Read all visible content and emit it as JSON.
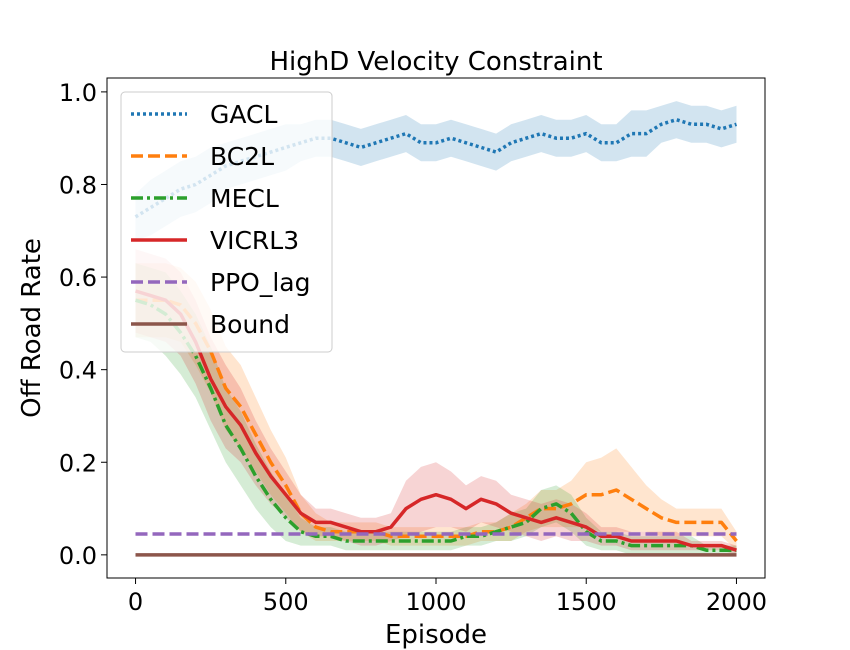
{
  "chart_data": {
    "type": "line",
    "title": "HighD Velocity Constraint",
    "xlabel": "Episode",
    "ylabel": "Off Road Rate",
    "xlim": [
      -95,
      2095
    ],
    "ylim": [
      -0.05,
      1.03
    ],
    "xticks": [
      0,
      500,
      1000,
      1500,
      2000
    ],
    "xtick_labels": [
      "0",
      "500",
      "1000",
      "1500",
      "2000"
    ],
    "yticks": [
      0.0,
      0.2,
      0.4,
      0.6,
      0.8,
      1.0
    ],
    "ytick_labels": [
      "0.0",
      "0.2",
      "0.4",
      "0.6",
      "0.8",
      "1.0"
    ],
    "grid": false,
    "legend_position": "top-left",
    "series": [
      {
        "name": "GACL",
        "color": "#1f77b4",
        "style": "dotted",
        "x": [
          0,
          50,
          100,
          150,
          200,
          250,
          300,
          350,
          400,
          450,
          500,
          550,
          600,
          650,
          700,
          750,
          800,
          850,
          900,
          950,
          1000,
          1050,
          1100,
          1150,
          1200,
          1250,
          1300,
          1350,
          1400,
          1450,
          1500,
          1550,
          1600,
          1650,
          1700,
          1750,
          1800,
          1850,
          1900,
          1950,
          2000
        ],
        "y": [
          0.73,
          0.75,
          0.77,
          0.79,
          0.8,
          0.82,
          0.84,
          0.85,
          0.86,
          0.87,
          0.88,
          0.89,
          0.9,
          0.9,
          0.89,
          0.88,
          0.89,
          0.9,
          0.91,
          0.89,
          0.89,
          0.9,
          0.89,
          0.88,
          0.87,
          0.89,
          0.9,
          0.91,
          0.9,
          0.9,
          0.91,
          0.89,
          0.89,
          0.91,
          0.91,
          0.93,
          0.94,
          0.93,
          0.93,
          0.92,
          0.93
        ],
        "band": [
          0.05,
          0.06,
          0.06,
          0.06,
          0.06,
          0.06,
          0.05,
          0.05,
          0.05,
          0.05,
          0.05,
          0.04,
          0.04,
          0.04,
          0.04,
          0.04,
          0.04,
          0.04,
          0.04,
          0.04,
          0.04,
          0.04,
          0.04,
          0.04,
          0.04,
          0.04,
          0.04,
          0.04,
          0.04,
          0.04,
          0.04,
          0.04,
          0.04,
          0.05,
          0.05,
          0.04,
          0.04,
          0.04,
          0.04,
          0.04,
          0.04
        ]
      },
      {
        "name": "BC2L",
        "color": "#ff7f0e",
        "style": "dashed",
        "x": [
          0,
          50,
          100,
          150,
          200,
          250,
          300,
          350,
          400,
          450,
          500,
          550,
          600,
          650,
          700,
          750,
          800,
          850,
          900,
          950,
          1000,
          1050,
          1100,
          1150,
          1200,
          1250,
          1300,
          1350,
          1400,
          1450,
          1500,
          1550,
          1600,
          1650,
          1700,
          1750,
          1800,
          1850,
          1900,
          1950,
          2000
        ],
        "y": [
          0.55,
          0.55,
          0.55,
          0.54,
          0.5,
          0.44,
          0.36,
          0.32,
          0.26,
          0.2,
          0.15,
          0.09,
          0.06,
          0.05,
          0.05,
          0.05,
          0.05,
          0.04,
          0.04,
          0.04,
          0.04,
          0.04,
          0.04,
          0.05,
          0.05,
          0.06,
          0.08,
          0.1,
          0.1,
          0.11,
          0.13,
          0.13,
          0.14,
          0.12,
          0.1,
          0.08,
          0.07,
          0.07,
          0.07,
          0.07,
          0.03
        ],
        "band": [
          0.08,
          0.08,
          0.08,
          0.08,
          0.09,
          0.09,
          0.09,
          0.09,
          0.08,
          0.07,
          0.06,
          0.04,
          0.03,
          0.02,
          0.02,
          0.02,
          0.02,
          0.02,
          0.02,
          0.02,
          0.02,
          0.02,
          0.02,
          0.02,
          0.02,
          0.03,
          0.03,
          0.04,
          0.04,
          0.05,
          0.07,
          0.08,
          0.09,
          0.07,
          0.05,
          0.04,
          0.03,
          0.03,
          0.03,
          0.03,
          0.02
        ]
      },
      {
        "name": "MECL",
        "color": "#2ca02c",
        "style": "dashdot",
        "x": [
          0,
          50,
          100,
          150,
          200,
          250,
          300,
          350,
          400,
          450,
          500,
          550,
          600,
          650,
          700,
          750,
          800,
          850,
          900,
          950,
          1000,
          1050,
          1100,
          1150,
          1200,
          1250,
          1300,
          1350,
          1400,
          1450,
          1500,
          1550,
          1600,
          1650,
          1700,
          1750,
          1800,
          1850,
          1900,
          1950,
          2000
        ],
        "y": [
          0.55,
          0.54,
          0.52,
          0.48,
          0.43,
          0.36,
          0.28,
          0.23,
          0.17,
          0.12,
          0.08,
          0.05,
          0.04,
          0.04,
          0.03,
          0.03,
          0.03,
          0.03,
          0.03,
          0.03,
          0.03,
          0.03,
          0.04,
          0.04,
          0.05,
          0.06,
          0.07,
          0.1,
          0.11,
          0.09,
          0.05,
          0.03,
          0.03,
          0.02,
          0.02,
          0.02,
          0.02,
          0.02,
          0.01,
          0.01,
          0.01
        ],
        "band": [
          0.08,
          0.08,
          0.09,
          0.09,
          0.09,
          0.09,
          0.08,
          0.08,
          0.07,
          0.06,
          0.05,
          0.03,
          0.02,
          0.02,
          0.02,
          0.02,
          0.02,
          0.02,
          0.02,
          0.02,
          0.02,
          0.02,
          0.02,
          0.02,
          0.02,
          0.03,
          0.03,
          0.04,
          0.04,
          0.04,
          0.03,
          0.02,
          0.02,
          0.02,
          0.02,
          0.02,
          0.02,
          0.02,
          0.01,
          0.01,
          0.01
        ]
      },
      {
        "name": "VICRL3",
        "color": "#d62728",
        "style": "solid",
        "x": [
          0,
          50,
          100,
          150,
          200,
          250,
          300,
          350,
          400,
          450,
          500,
          550,
          600,
          650,
          700,
          750,
          800,
          850,
          900,
          950,
          1000,
          1050,
          1100,
          1150,
          1200,
          1250,
          1300,
          1350,
          1400,
          1450,
          1500,
          1550,
          1600,
          1650,
          1700,
          1750,
          1800,
          1850,
          1900,
          1950,
          2000
        ],
        "y": [
          0.57,
          0.56,
          0.55,
          0.52,
          0.46,
          0.38,
          0.32,
          0.28,
          0.22,
          0.17,
          0.13,
          0.09,
          0.07,
          0.07,
          0.06,
          0.05,
          0.05,
          0.06,
          0.1,
          0.12,
          0.13,
          0.12,
          0.1,
          0.12,
          0.11,
          0.09,
          0.08,
          0.07,
          0.08,
          0.07,
          0.06,
          0.04,
          0.04,
          0.03,
          0.03,
          0.03,
          0.03,
          0.02,
          0.02,
          0.02,
          0.01
        ],
        "band": [
          0.09,
          0.09,
          0.09,
          0.09,
          0.09,
          0.09,
          0.09,
          0.08,
          0.07,
          0.06,
          0.05,
          0.04,
          0.03,
          0.03,
          0.03,
          0.03,
          0.03,
          0.03,
          0.06,
          0.07,
          0.07,
          0.06,
          0.05,
          0.05,
          0.05,
          0.04,
          0.04,
          0.04,
          0.04,
          0.04,
          0.03,
          0.02,
          0.02,
          0.02,
          0.02,
          0.02,
          0.02,
          0.01,
          0.01,
          0.01,
          0.01
        ]
      },
      {
        "name": "PPO_lag",
        "color": "#9467bd",
        "style": "dashed",
        "x": [
          0,
          2000
        ],
        "y": [
          0.045,
          0.045
        ]
      },
      {
        "name": "Bound",
        "color": "#8c564b",
        "style": "solid",
        "x": [
          0,
          2000
        ],
        "y": [
          0.0,
          0.0
        ]
      }
    ]
  }
}
